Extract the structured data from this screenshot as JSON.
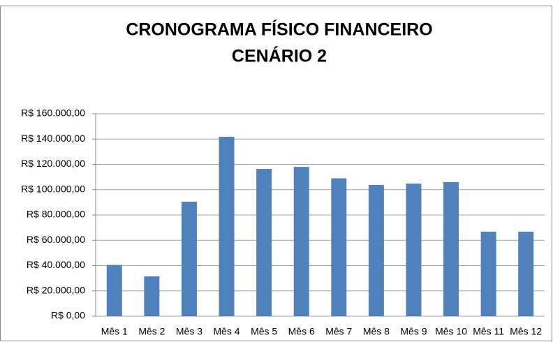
{
  "chart_data": {
    "type": "bar",
    "title": "CRONOGRAMA FÍSICO FINANCEIRO",
    "subtitle": "CENÁRIO 2",
    "categories": [
      "Mês 1",
      "Mês 2",
      "Mês 3",
      "Mês 4",
      "Mês 5",
      "Mês 6",
      "Mês 7",
      "Mês 8",
      "Mês 9",
      "Mês 10",
      "Mês 11",
      "Mês 12"
    ],
    "values": [
      40500,
      31500,
      90500,
      141800,
      116400,
      118000,
      109000,
      103700,
      104800,
      106000,
      66800,
      66800
    ],
    "color": "#4f81bd",
    "ylim": [
      0,
      160000
    ],
    "yticks": [
      {
        "value": 0,
        "label": "R$ 0,00"
      },
      {
        "value": 20000,
        "label": "R$ 20.000,00"
      },
      {
        "value": 40000,
        "label": "R$ 40.000,00"
      },
      {
        "value": 60000,
        "label": "R$ 60.000,00"
      },
      {
        "value": 80000,
        "label": "R$ 80.000,00"
      },
      {
        "value": 100000,
        "label": "R$ 100.000,00"
      },
      {
        "value": 120000,
        "label": "R$ 120.000,00"
      },
      {
        "value": 140000,
        "label": "R$ 140.000,00"
      },
      {
        "value": 160000,
        "label": "R$ 160.000,00"
      }
    ],
    "grid": true
  }
}
